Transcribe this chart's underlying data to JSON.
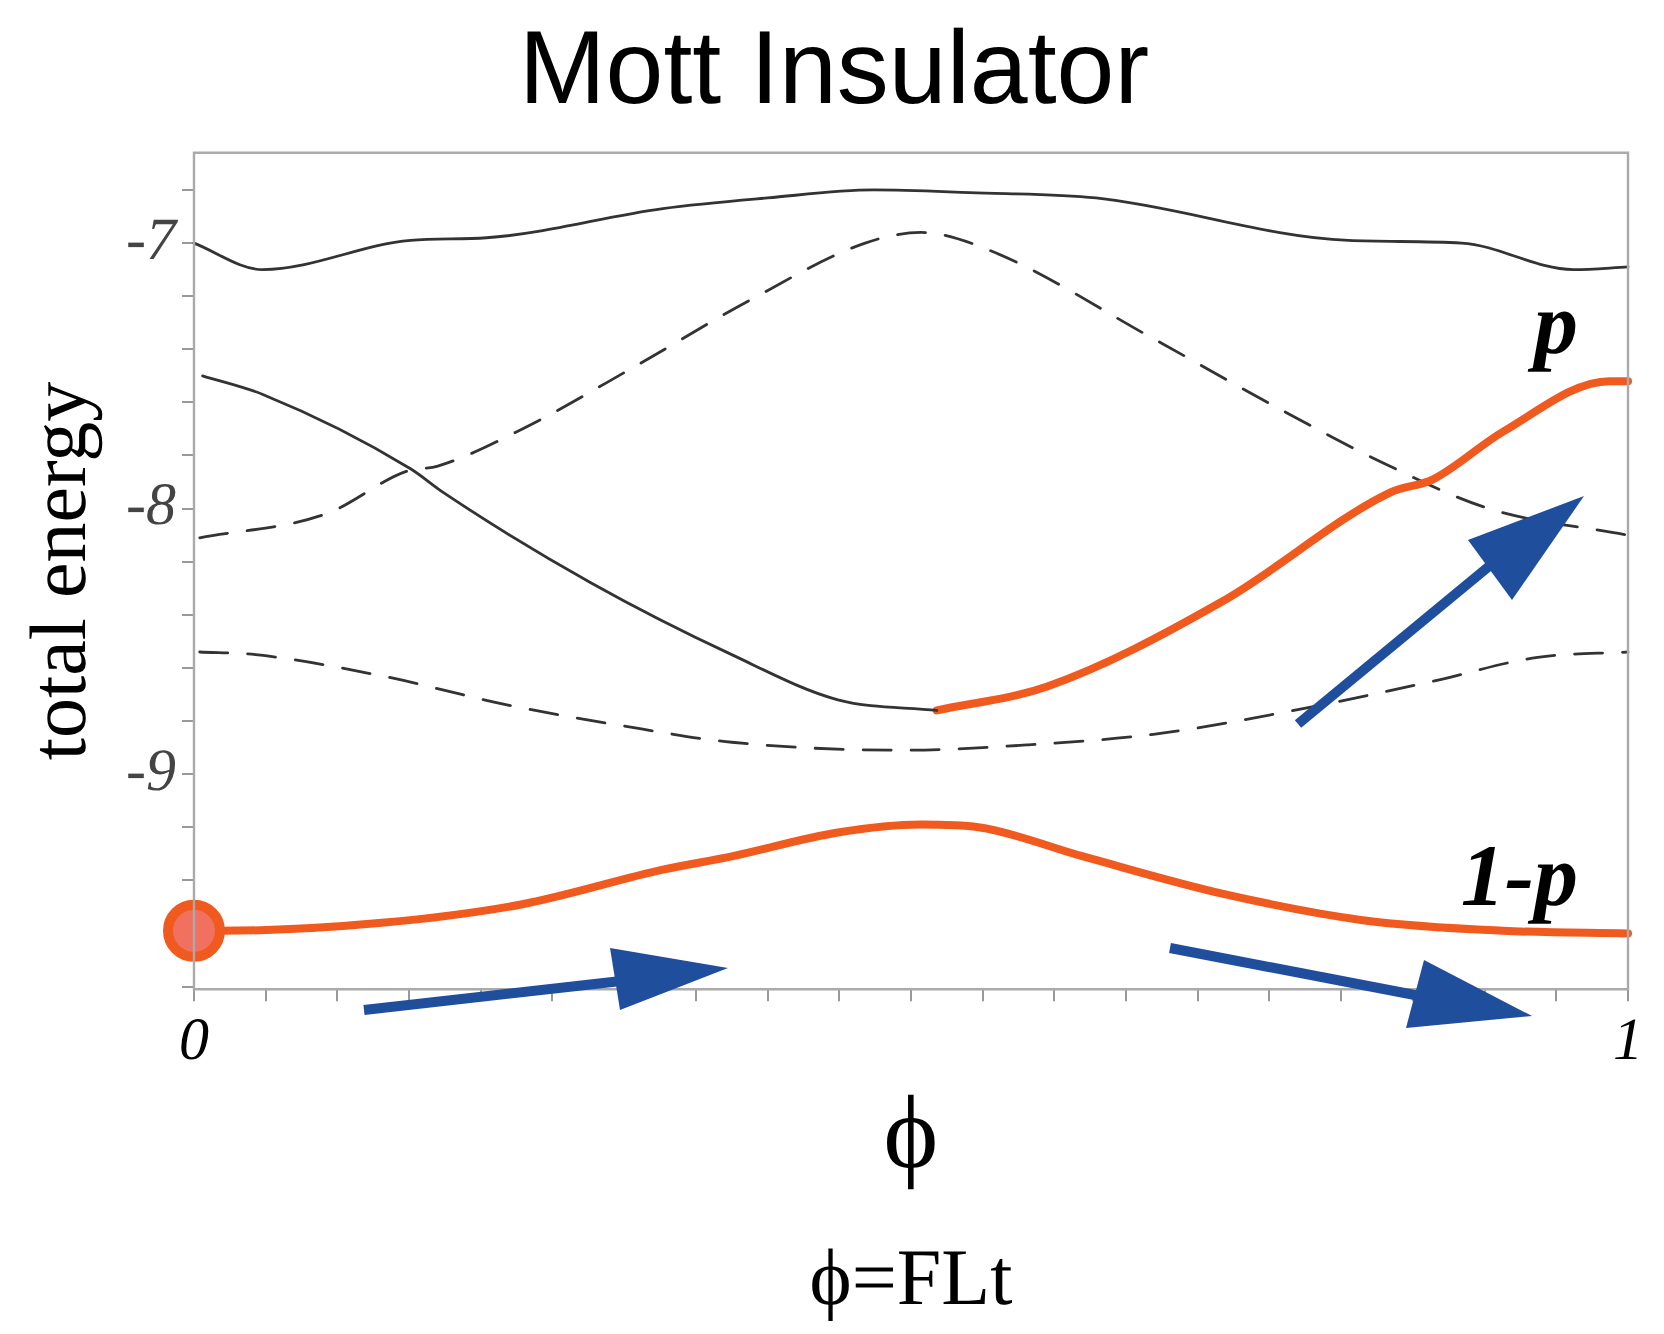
{
  "chart_data": {
    "type": "line",
    "title": "Mott Insulator",
    "xlabel": "ϕ",
    "ylabel": "total energy",
    "annotations": [
      "ϕ=FLt"
    ],
    "xlim": [
      0,
      1
    ],
    "ylim": [
      -9.81,
      -6.66
    ],
    "xticks": [
      0,
      {
        "value": 0.05,
        "label": null
      },
      {
        "value": 0.1,
        "label": null
      },
      {
        "value": 0.15,
        "label": null
      },
      {
        "value": 0.2,
        "label": null
      },
      {
        "value": 0.25,
        "label": null
      },
      {
        "value": 0.3,
        "label": null
      },
      {
        "value": 0.35,
        "label": null
      },
      {
        "value": 0.4,
        "label": null
      },
      {
        "value": 0.45,
        "label": null
      },
      {
        "value": 0.5,
        "label": null
      },
      {
        "value": 0.55,
        "label": null
      },
      {
        "value": 0.6,
        "label": null
      },
      {
        "value": 0.65,
        "label": null
      },
      {
        "value": 0.7,
        "label": null
      },
      {
        "value": 0.75,
        "label": null
      },
      {
        "value": 0.8,
        "label": null
      },
      {
        "value": 0.85,
        "label": null
      },
      {
        "value": 0.9,
        "label": null
      },
      {
        "value": 0.95,
        "label": null
      },
      1
    ],
    "yticks": [
      {
        "value": -9.8,
        "label": null
      },
      {
        "value": -9.6,
        "label": null
      },
      {
        "value": -9.4,
        "label": null
      },
      {
        "value": -9.2,
        "label": null
      },
      -9,
      {
        "value": -8.8,
        "label": null
      },
      {
        "value": -8.6,
        "label": null
      },
      {
        "value": -8.4,
        "label": null
      },
      {
        "value": -8.2,
        "label": null
      },
      -8,
      {
        "value": -7.8,
        "label": null
      },
      {
        "value": -7.6,
        "label": null
      },
      {
        "value": -7.4,
        "label": null
      },
      {
        "value": -7.2,
        "label": null
      },
      -7,
      {
        "value": -6.8,
        "label": null
      }
    ],
    "grid": false,
    "legend": false,
    "series": [
      {
        "color": "#333333",
        "line_style": "solid",
        "x": [
          0,
          0.048,
          0.151,
          0.204,
          0.327,
          0.4,
          0.474,
          0.541,
          0.629,
          0.805,
          0.884,
          0.962,
          1
        ],
        "values": [
          -7.0,
          -7.1,
          -6.99,
          -6.98,
          -6.87,
          -6.83,
          -6.8,
          -6.81,
          -6.83,
          -6.99,
          -7.0,
          -7.1,
          -7.09
        ]
      },
      {
        "color": "#333333",
        "line_style": "solid",
        "x": [
          0.006,
          0.048,
          0.151,
          0.174,
          0.277,
          0.375,
          0.449,
          0.518
        ],
        "values": [
          -7.5,
          -7.57,
          -7.85,
          -7.94,
          -8.28,
          -8.55,
          -8.72,
          -8.76
        ]
      },
      {
        "name": "p",
        "color": "#f05a1e",
        "line_style": "solid",
        "x": [
          0.518,
          0.595,
          0.717,
          0.834,
          0.864,
          0.913,
          0.987,
          1
        ],
        "values": [
          -8.76,
          -8.67,
          -8.35,
          -7.94,
          -7.89,
          -7.71,
          -7.52,
          -7.52
        ]
      },
      {
        "color": "#333333",
        "line_style": "dashed",
        "x": [
          0.004,
          0.092,
          0.148,
          0.17,
          0.229,
          0.309,
          0.386,
          0.468,
          0.507,
          0.556,
          0.669,
          0.752,
          0.83,
          0.903,
          1
        ],
        "values": [
          -8.11,
          -8.02,
          -7.86,
          -7.84,
          -7.7,
          -7.46,
          -7.22,
          -7.0,
          -6.96,
          -7.03,
          -7.36,
          -7.61,
          -7.83,
          -8.0,
          -8.1
        ]
      },
      {
        "color": "#333333",
        "line_style": "dashed",
        "x": [
          0.004,
          0.043,
          0.131,
          0.219,
          0.312,
          0.375,
          0.493,
          0.581,
          0.669,
          0.767,
          0.864,
          0.937,
          1
        ],
        "values": [
          -8.54,
          -8.55,
          -8.63,
          -8.74,
          -8.83,
          -8.88,
          -8.91,
          -8.89,
          -8.85,
          -8.76,
          -8.65,
          -8.56,
          -8.54
        ]
      },
      {
        "type": "scatter",
        "color": "#f05a1e",
        "marker": "circle",
        "x": [
          0
        ],
        "values": [
          -9.59
        ]
      },
      {
        "name": "1-p",
        "color": "#f05a1e",
        "line_style": "solid",
        "x": [
          0,
          0.019,
          0.131,
          0.229,
          0.327,
          0.375,
          0.449,
          0.507,
          0.547,
          0.62,
          0.717,
          0.815,
          0.913,
          1
        ],
        "values": [
          -9.59,
          -9.59,
          -9.56,
          -9.49,
          -9.36,
          -9.31,
          -9.22,
          -9.19,
          -9.2,
          -9.31,
          -9.45,
          -9.55,
          -9.59,
          -9.6
        ]
      }
    ]
  }
}
